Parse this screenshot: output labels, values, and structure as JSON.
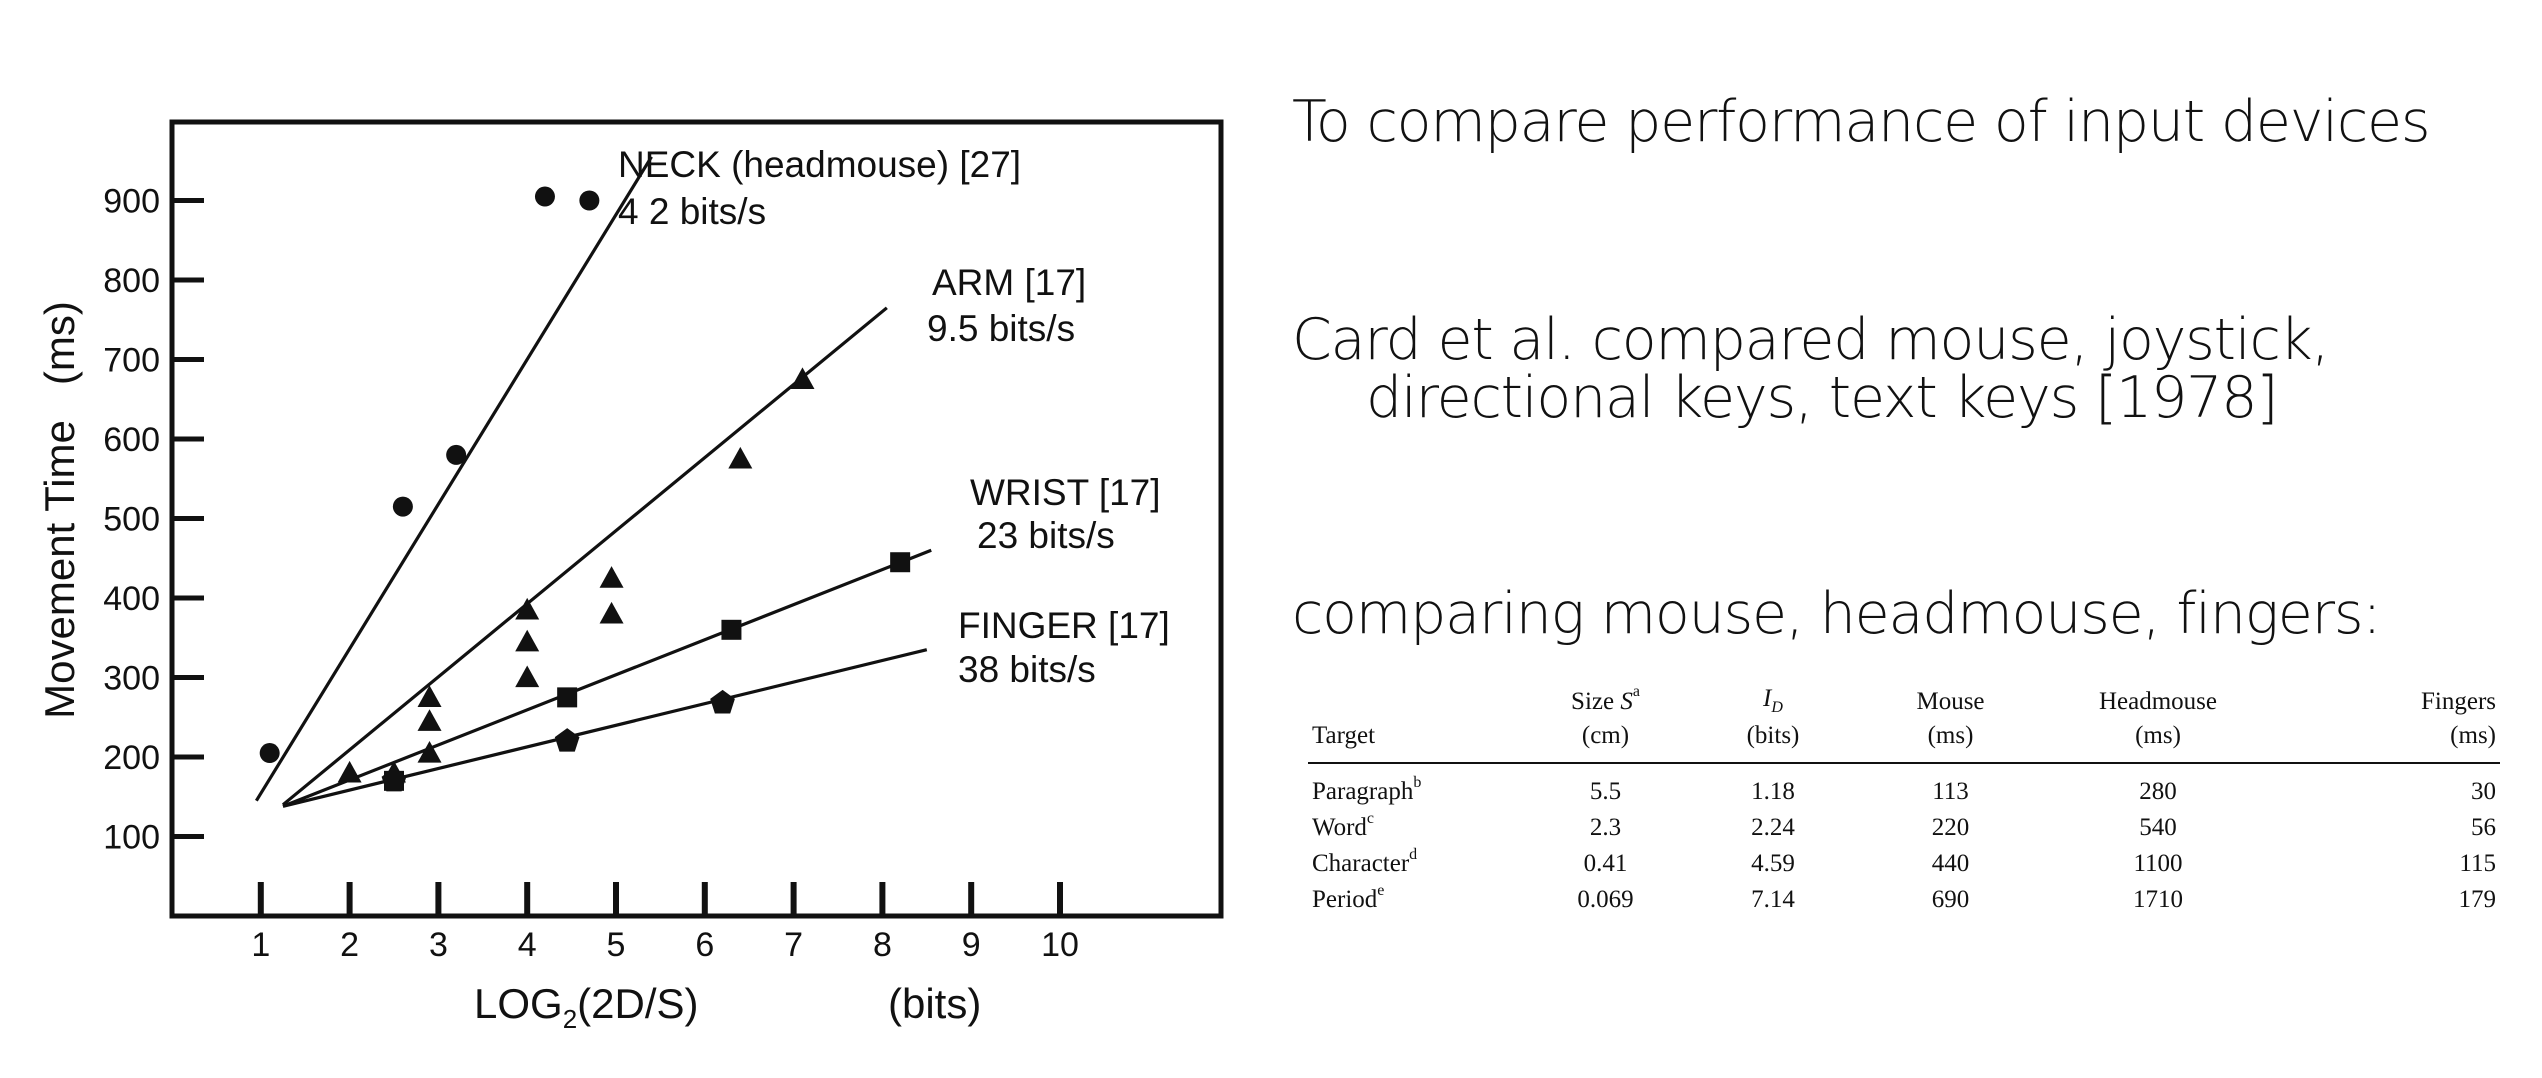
{
  "chart_data": {
    "type": "scatter",
    "xlabel_main": "LOG",
    "xlabel_sub": "2",
    "xlabel_rest": "(2D/S)",
    "xlabel_unit": "(bits)",
    "ylabel": "Movement Time   (ms)",
    "xlim": [
      0,
      11
    ],
    "ylim": [
      0,
      1000
    ],
    "xticks": [
      1,
      2,
      3,
      4,
      5,
      6,
      7,
      8,
      9,
      10
    ],
    "yticks": [
      100,
      200,
      300,
      400,
      500,
      600,
      700,
      800,
      900
    ],
    "grid": false,
    "series": [
      {
        "name": "NECK (headmouse) [27]",
        "rate": "4 2 bits/s",
        "marker": "circle",
        "points": [
          [
            1.1,
            205
          ],
          [
            2.6,
            515
          ],
          [
            3.2,
            580
          ],
          [
            4.2,
            905
          ],
          [
            4.7,
            900
          ]
        ],
        "fit": [
          [
            0.95,
            145
          ],
          [
            5.4,
            955
          ]
        ]
      },
      {
        "name": "ARM  [17]",
        "rate": "9.5 bits/s",
        "marker": "triangle",
        "points": [
          [
            2,
            180
          ],
          [
            2.5,
            180
          ],
          [
            2.9,
            245
          ],
          [
            2.9,
            275
          ],
          [
            2.9,
            205
          ],
          [
            4,
            385
          ],
          [
            4,
            345
          ],
          [
            4,
            300
          ],
          [
            4.95,
            425
          ],
          [
            4.95,
            380
          ],
          [
            6.4,
            575
          ],
          [
            7.1,
            675
          ]
        ],
        "fit": [
          [
            1.25,
            140
          ],
          [
            8.05,
            765
          ]
        ]
      },
      {
        "name": "WRIST  [17]",
        "rate": "23 bits/s",
        "marker": "square",
        "points": [
          [
            2.5,
            170
          ],
          [
            4.45,
            275
          ],
          [
            6.3,
            360
          ],
          [
            8.2,
            445
          ]
        ],
        "fit": [
          [
            1.25,
            138
          ],
          [
            8.55,
            460
          ]
        ]
      },
      {
        "name": "FINGER [17]",
        "rate": "38 bits/s",
        "marker": "pentagon",
        "points": [
          [
            2.5,
            170
          ],
          [
            4.45,
            220
          ],
          [
            6.2,
            268
          ]
        ],
        "fit": [
          [
            1.25,
            138
          ],
          [
            8.5,
            335
          ]
        ]
      }
    ]
  },
  "text": {
    "heading1": "To compare performance of input devices",
    "heading2_line1": "Card et al. compared mouse, joystick,",
    "heading2_line2": "directional keys, text keys [1978]",
    "heading3": "comparing mouse, headmouse, fingers:"
  },
  "table": {
    "headers": {
      "target": "Target",
      "size_line1": "Size",
      "size_symbol": "S",
      "size_sup": "a",
      "size_unit": "(cm)",
      "id_symbol": "I",
      "id_sub": "D",
      "id_unit": "(bits)",
      "mouse": "Mouse",
      "mouse_unit": "(ms)",
      "headmouse": "Headmouse",
      "headmouse_unit": "(ms)",
      "fingers": "Fingers",
      "fingers_unit": "(ms)"
    },
    "rows": [
      {
        "target": "Paragraph",
        "sup": "b",
        "size": "5.5",
        "id": "1.18",
        "mouse": "113",
        "headmouse": "280",
        "fingers": "30"
      },
      {
        "target": "Word",
        "sup": "c",
        "size": "2.3",
        "id": "2.24",
        "mouse": "220",
        "headmouse": "540",
        "fingers": "56"
      },
      {
        "target": "Character",
        "sup": "d",
        "size": "0.41",
        "id": "4.59",
        "mouse": "440",
        "headmouse": "1100",
        "fingers": "115"
      },
      {
        "target": "Period",
        "sup": "e",
        "size": "0.069",
        "id": "7.14",
        "mouse": "690",
        "headmouse": "1710",
        "fingers": "179"
      }
    ]
  }
}
